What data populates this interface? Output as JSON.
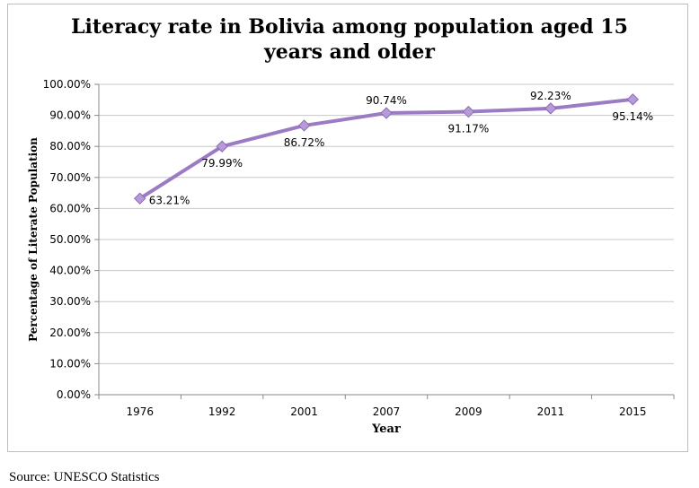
{
  "chart_data": {
    "type": "line",
    "title_lines": [
      "Literacy rate in Bolivia among population aged 15",
      "years and older"
    ],
    "xlabel": "Year",
    "ylabel": "Percentage of Literate Population",
    "categories": [
      "1976",
      "1992",
      "2001",
      "2007",
      "2009",
      "2011",
      "2015"
    ],
    "series": [
      {
        "values": [
          63.21,
          79.99,
          86.72,
          90.74,
          91.17,
          92.23,
          95.14
        ],
        "data_labels": [
          "63.21%",
          "79.99%",
          "86.72%",
          "90.74%",
          "91.17%",
          "92.23%",
          "95.14%"
        ],
        "color": "#9b7cc4",
        "marker": "diamond"
      }
    ],
    "ylim": [
      0,
      100
    ],
    "y_ticks": [
      "0.00%",
      "10.00%",
      "20.00%",
      "30.00%",
      "40.00%",
      "50.00%",
      "60.00%",
      "70.00%",
      "80.00%",
      "90.00%",
      "100.00%"
    ],
    "grid": true,
    "legend": "none"
  },
  "source_note": "Source: UNESCO Statistics"
}
